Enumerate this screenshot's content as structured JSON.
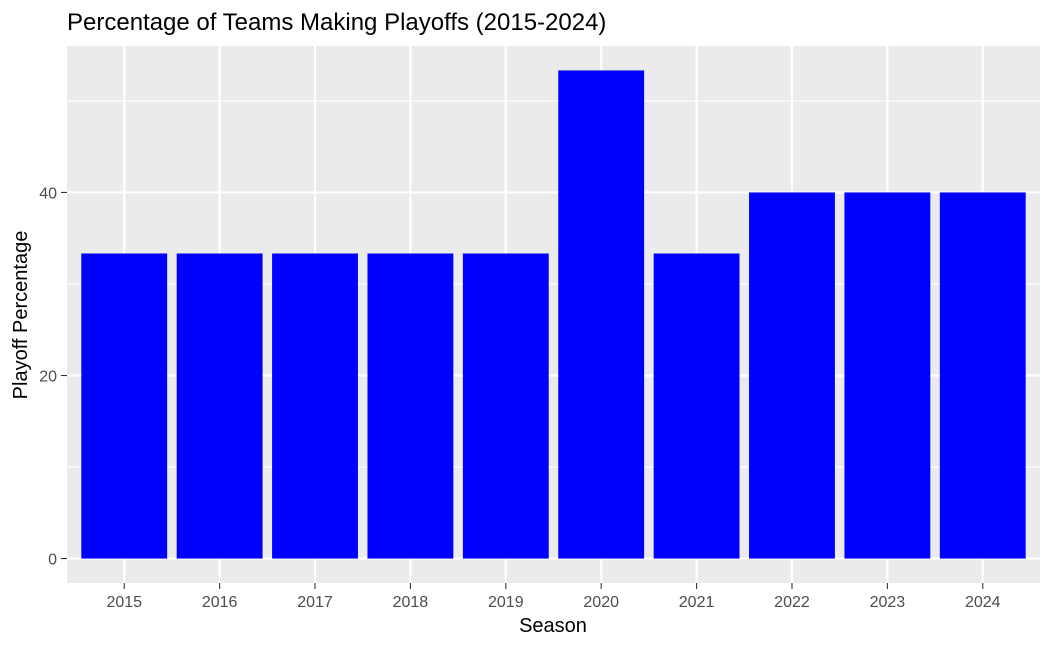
{
  "chart_data": {
    "type": "bar",
    "title": "Percentage of Teams Making Playoffs (2015-2024)",
    "xlabel": "Season",
    "ylabel": "Playoff Percentage",
    "categories": [
      "2015",
      "2016",
      "2017",
      "2018",
      "2019",
      "2020",
      "2021",
      "2022",
      "2023",
      "2024"
    ],
    "values": [
      33.33,
      33.33,
      33.33,
      33.33,
      33.33,
      53.33,
      33.33,
      40,
      40,
      40
    ],
    "ylim": [
      -2.67,
      56.0
    ],
    "yticks": [
      0,
      20,
      40
    ],
    "yticks_minor": [
      10,
      30,
      50
    ],
    "y_tick_labels": [
      "0",
      "20",
      "40"
    ],
    "grid": true,
    "legend": "none",
    "colors": {
      "bar": "#0000FF",
      "panel_background": "#EBEBEB",
      "grid": "#FFFFFF",
      "tick": "#333333",
      "tick_text": "#4D4D4D",
      "text": "#000000"
    }
  }
}
